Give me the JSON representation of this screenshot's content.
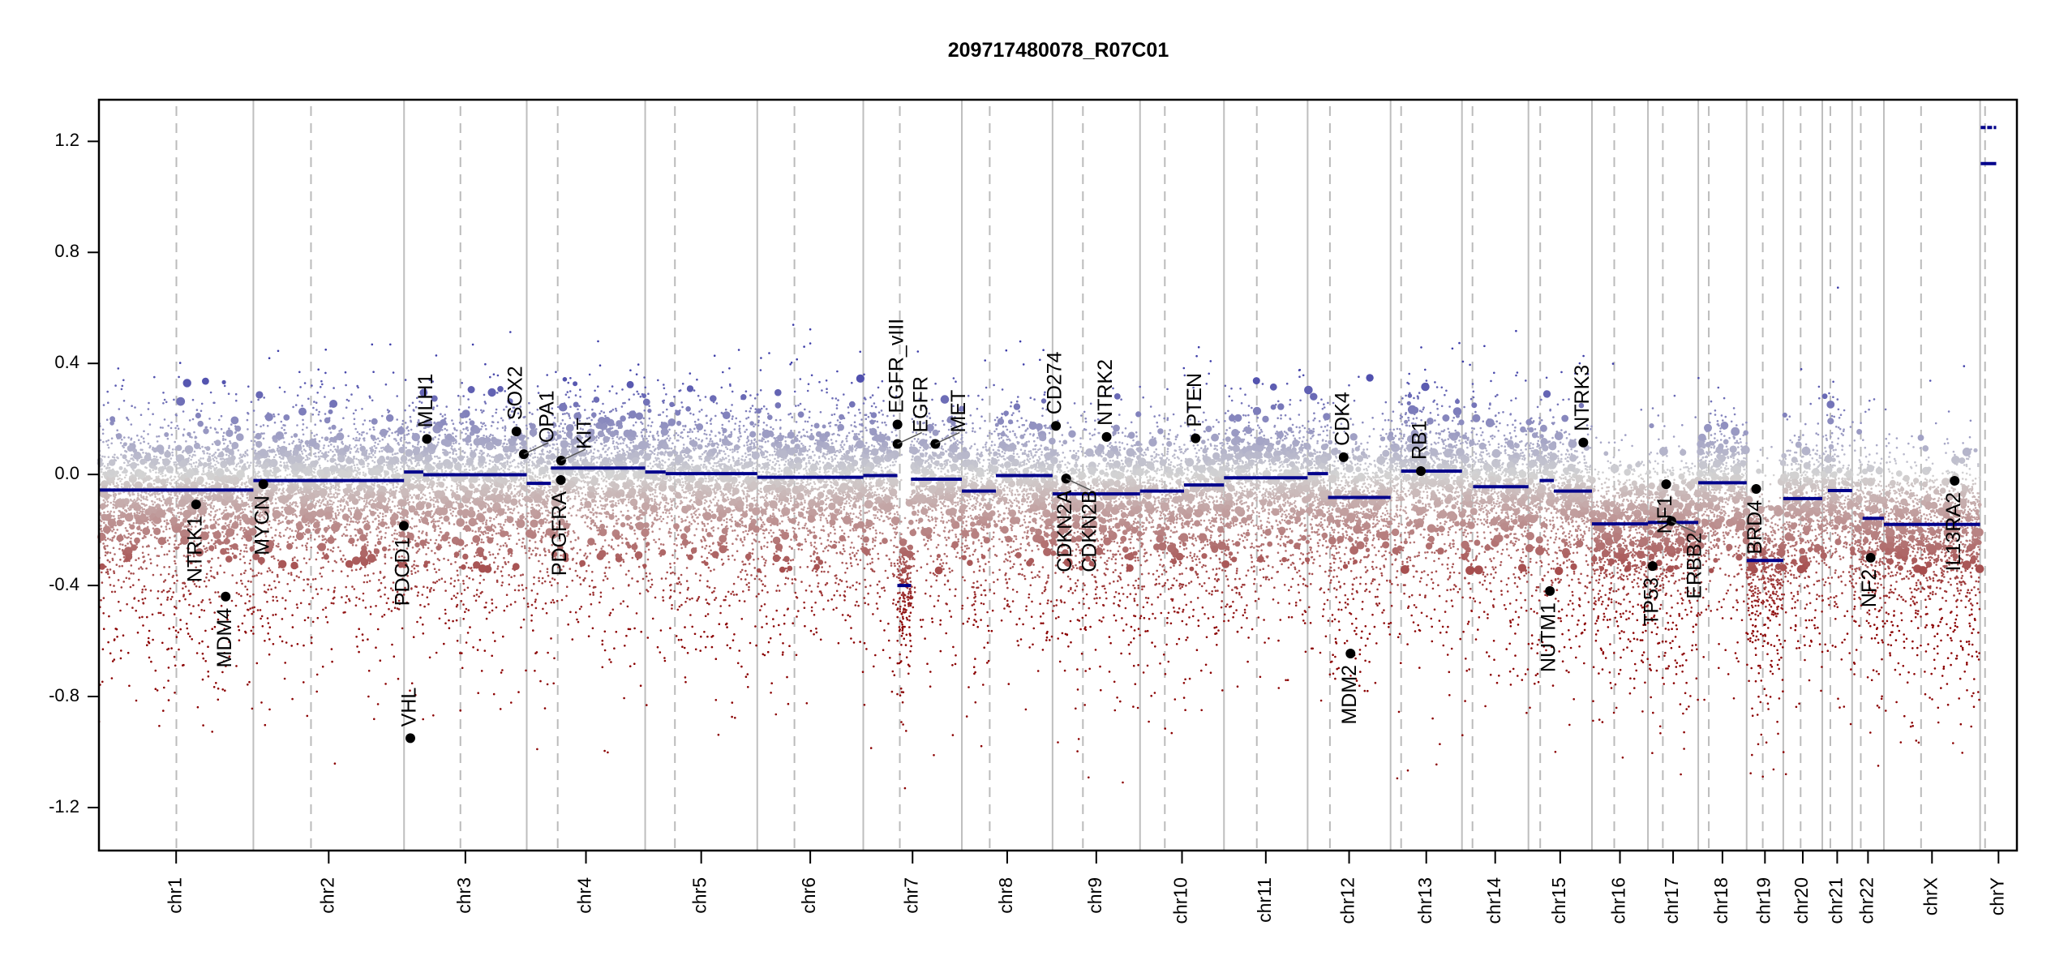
{
  "chart_data": {
    "type": "scatter",
    "title": "209717480078_R07C01",
    "xlabel": "",
    "ylabel": "",
    "ylim": [
      -1.355,
      1.35
    ],
    "yticks": [
      -1.2,
      -0.8,
      -0.4,
      0.0,
      0.4,
      0.8,
      1.2
    ],
    "ytick_labels": [
      "-1.2",
      "-0.8",
      "-0.4",
      "0.0",
      "0.4",
      "0.8",
      "1.2"
    ],
    "grid": false,
    "legend": "none",
    "colors": {
      "segment": "#00008b",
      "gain": "#3c3ca8",
      "neutral": "#d3d3d3",
      "loss": "#8b0000",
      "chrom_line": "#bebebe",
      "gene_dot": "#000000"
    },
    "chromosomes": [
      {
        "name": "chr1",
        "length_mb": 249.25,
        "centromere_mb": 125,
        "segments": [
          [
            0,
            249.25,
            -0.056
          ]
        ]
      },
      {
        "name": "chr2",
        "length_mb": 243.2,
        "centromere_mb": 93,
        "segments": [
          [
            0,
            243.2,
            -0.022
          ]
        ]
      },
      {
        "name": "chr3",
        "length_mb": 198.0,
        "centromere_mb": 91,
        "segments": [
          [
            0,
            31,
            0.009
          ],
          [
            31,
            198.0,
            -0.001
          ]
        ]
      },
      {
        "name": "chr4",
        "length_mb": 191.2,
        "centromere_mb": 50,
        "segments": [
          [
            0,
            39,
            -0.032
          ],
          [
            39,
            191.2,
            0.023
          ]
        ]
      },
      {
        "name": "chr5",
        "length_mb": 180.9,
        "centromere_mb": 48,
        "segments": [
          [
            0,
            33,
            0.009
          ],
          [
            33,
            180.9,
            0.003
          ]
        ]
      },
      {
        "name": "chr6",
        "length_mb": 171.1,
        "centromere_mb": 60,
        "segments": [
          [
            0,
            171.1,
            -0.01
          ]
        ]
      },
      {
        "name": "chr7",
        "length_mb": 159.1,
        "centromere_mb": 59,
        "segments": [
          [
            0,
            55,
            -0.004
          ],
          [
            55,
            77,
            -0.4
          ],
          [
            77,
            159.1,
            -0.017
          ]
        ]
      },
      {
        "name": "chr8",
        "length_mb": 146.4,
        "centromere_mb": 45,
        "segments": [
          [
            0,
            55,
            -0.06
          ],
          [
            55,
            146.4,
            -0.004
          ]
        ]
      },
      {
        "name": "chr9",
        "length_mb": 141.2,
        "centromere_mb": 49,
        "segments": [
          [
            0,
            141.2,
            -0.07
          ]
        ]
      },
      {
        "name": "chr10",
        "length_mb": 135.5,
        "centromere_mb": 40,
        "segments": [
          [
            0,
            71,
            -0.06
          ],
          [
            71,
            135.5,
            -0.038
          ]
        ]
      },
      {
        "name": "chr11",
        "length_mb": 135.0,
        "centromere_mb": 53,
        "segments": [
          [
            0,
            135.0,
            -0.012
          ]
        ]
      },
      {
        "name": "chr12",
        "length_mb": 133.9,
        "centromere_mb": 36,
        "segments": [
          [
            0,
            33,
            0.003
          ],
          [
            33,
            133.9,
            -0.083
          ]
        ]
      },
      {
        "name": "chr13",
        "length_mb": 115.2,
        "centromere_mb": 17,
        "segments": [
          [
            17,
            115.2,
            0.012
          ]
        ]
      },
      {
        "name": "chr14",
        "length_mb": 107.3,
        "centromere_mb": 17,
        "segments": [
          [
            18,
            107.3,
            -0.044
          ]
        ]
      },
      {
        "name": "chr15",
        "length_mb": 102.5,
        "centromere_mb": 19,
        "segments": [
          [
            18,
            41,
            -0.022
          ],
          [
            41,
            102.5,
            -0.06
          ]
        ]
      },
      {
        "name": "chr16",
        "length_mb": 90.4,
        "centromere_mb": 36,
        "segments": [
          [
            0,
            90.4,
            -0.178
          ]
        ]
      },
      {
        "name": "chr17",
        "length_mb": 81.2,
        "centromere_mb": 24,
        "segments": [
          [
            0,
            81.2,
            -0.173
          ]
        ]
      },
      {
        "name": "chr18",
        "length_mb": 78.1,
        "centromere_mb": 17,
        "segments": [
          [
            0,
            78.1,
            -0.03
          ]
        ]
      },
      {
        "name": "chr19",
        "length_mb": 59.1,
        "centromere_mb": 26,
        "segments": [
          [
            0,
            59.1,
            -0.31
          ]
        ]
      },
      {
        "name": "chr20",
        "length_mb": 63.0,
        "centromere_mb": 28,
        "segments": [
          [
            0,
            63.0,
            -0.087
          ]
        ]
      },
      {
        "name": "chr21",
        "length_mb": 48.1,
        "centromere_mb": 13,
        "segments": [
          [
            9,
            48.1,
            -0.058
          ]
        ]
      },
      {
        "name": "chr22",
        "length_mb": 51.3,
        "centromere_mb": 14,
        "segments": [
          [
            17,
            51.3,
            -0.158
          ]
        ]
      },
      {
        "name": "chrX",
        "length_mb": 155.3,
        "centromere_mb": 60,
        "segments": [
          [
            0,
            155.3,
            -0.18
          ]
        ]
      },
      {
        "name": "chrY",
        "length_mb": 59.4,
        "centromere_mb": 8,
        "segments": [
          [
            1,
            26,
            1.25
          ],
          [
            1,
            26,
            1.12
          ]
        ]
      }
    ],
    "genes": [
      {
        "name": "NTRK1",
        "chr": "chr1",
        "pos_mb": 156.8,
        "value": -0.108,
        "label_side": "below"
      },
      {
        "name": "MDM4",
        "chr": "chr1",
        "pos_mb": 204.5,
        "value": -0.44,
        "label_side": "below"
      },
      {
        "name": "MYCN",
        "chr": "chr2",
        "pos_mb": 16.1,
        "value": -0.035,
        "label_side": "below"
      },
      {
        "name": "PDCD1",
        "chr": "chr2",
        "pos_mb": 242.8,
        "value": -0.185,
        "label_side": "below"
      },
      {
        "name": "VHL",
        "chr": "chr3",
        "pos_mb": 10.2,
        "value": -0.95,
        "label_side": "above"
      },
      {
        "name": "MLH1",
        "chr": "chr3",
        "pos_mb": 37.0,
        "value": 0.128,
        "label_side": "above"
      },
      {
        "name": "SOX2",
        "chr": "chr3",
        "pos_mb": 181.4,
        "value": 0.155,
        "label_side": "above"
      },
      {
        "name": "OPA1",
        "chr": "chr3",
        "pos_mb": 193.3,
        "value": 0.073,
        "label_side": "above"
      },
      {
        "name": "PDGFRA",
        "chr": "chr4",
        "pos_mb": 55.1,
        "value": -0.02,
        "label_side": "below"
      },
      {
        "name": "KIT",
        "chr": "chr4",
        "pos_mb": 55.5,
        "value": 0.05,
        "label_side": "above"
      },
      {
        "name": "EGFR_vIII",
        "chr": "chr7",
        "pos_mb": 55.2,
        "value": 0.18,
        "label_side": "above"
      },
      {
        "name": "EGFR",
        "chr": "chr7",
        "pos_mb": 55.2,
        "value": 0.11,
        "label_side": "above"
      },
      {
        "name": "MET",
        "chr": "chr7",
        "pos_mb": 116.3,
        "value": 0.11,
        "label_side": "above"
      },
      {
        "name": "CD274",
        "chr": "chr9",
        "pos_mb": 5.5,
        "value": 0.175,
        "label_side": "above"
      },
      {
        "name": "CDKN2A",
        "chr": "chr9",
        "pos_mb": 21.9,
        "value": -0.015,
        "label_side": "below"
      },
      {
        "name": "CDKN2B",
        "chr": "chr9",
        "pos_mb": 22.0,
        "value": -0.015,
        "label_side": "below"
      },
      {
        "name": "NTRK2",
        "chr": "chr9",
        "pos_mb": 87.3,
        "value": 0.135,
        "label_side": "above"
      },
      {
        "name": "PTEN",
        "chr": "chr10",
        "pos_mb": 89.6,
        "value": 0.13,
        "label_side": "above"
      },
      {
        "name": "CDK4",
        "chr": "chr12",
        "pos_mb": 58.1,
        "value": 0.062,
        "label_side": "above"
      },
      {
        "name": "MDM2",
        "chr": "chr12",
        "pos_mb": 69.2,
        "value": -0.645,
        "label_side": "below"
      },
      {
        "name": "RB1",
        "chr": "chr13",
        "pos_mb": 48.9,
        "value": 0.012,
        "label_side": "above"
      },
      {
        "name": "NUTM1",
        "chr": "chr15",
        "pos_mb": 34.6,
        "value": -0.42,
        "label_side": "below"
      },
      {
        "name": "NTRK3",
        "chr": "chr15",
        "pos_mb": 88.6,
        "value": 0.115,
        "label_side": "above"
      },
      {
        "name": "TP53",
        "chr": "chr17",
        "pos_mb": 7.5,
        "value": -0.33,
        "label_side": "below"
      },
      {
        "name": "NF1",
        "chr": "chr17",
        "pos_mb": 29.4,
        "value": -0.035,
        "label_side": "below"
      },
      {
        "name": "ERBB2",
        "chr": "chr17",
        "pos_mb": 37.8,
        "value": -0.168,
        "label_side": "below"
      },
      {
        "name": "BRD4",
        "chr": "chr19",
        "pos_mb": 15.4,
        "value": -0.052,
        "label_side": "below"
      },
      {
        "name": "NF2",
        "chr": "chr22",
        "pos_mb": 29.9,
        "value": -0.3,
        "label_side": "below"
      },
      {
        "name": "IL13RA2",
        "chr": "chrX",
        "pos_mb": 114.2,
        "value": -0.023,
        "label_side": "below"
      }
    ]
  }
}
